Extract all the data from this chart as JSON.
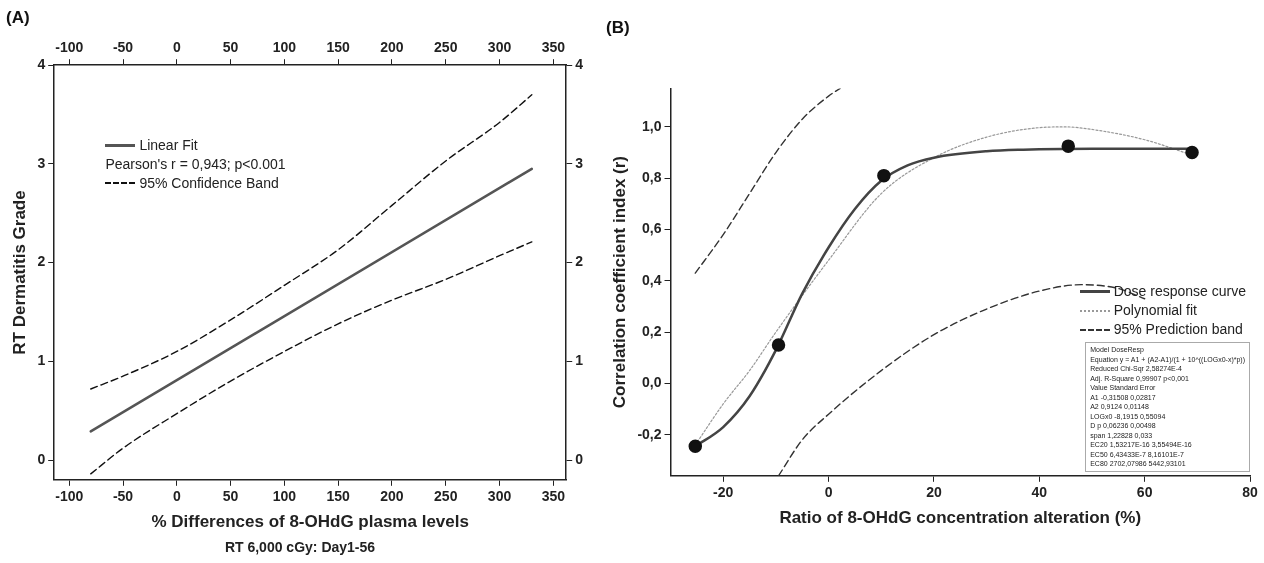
{
  "chart_data": [
    {
      "type": "line",
      "title": "(A)",
      "subtitle": "RT 6,000 cGy: Day1-56",
      "xlabel": "% Differences of 8-OHdG plasma levels",
      "ylabel": "RT Dermatitis Grade",
      "xlim": [
        -114,
        362
      ],
      "xticks": [
        -100,
        -50,
        0,
        50,
        100,
        150,
        200,
        250,
        300,
        350
      ],
      "ylim": [
        -0.2,
        4
      ],
      "yticks": [
        0,
        1,
        2,
        3,
        4
      ],
      "x2lim": [
        -114,
        362
      ],
      "x2ticks": [
        -100,
        -50,
        0,
        50,
        100,
        150,
        200,
        250,
        300,
        350
      ],
      "y2lim": [
        -0.2,
        4
      ],
      "y2ticks": [
        0,
        1,
        2,
        3,
        4
      ],
      "legend": "top left",
      "annotations": [
        "Pearson's r = 0,943; p<0.001"
      ],
      "series": [
        {
          "name": "Linear Fit",
          "color": "#555555",
          "line_style": "solid",
          "marker": "none",
          "x": [
            -80,
            330
          ],
          "values": [
            0.29,
            2.95
          ]
        },
        {
          "name": "95% Confidence Band",
          "color": "#111111",
          "line_style": "dashed",
          "marker": "none",
          "x": [
            -80,
            -50,
            0,
            50,
            100,
            150,
            200,
            250,
            300,
            330
          ],
          "values": [
            0.72,
            0.85,
            1.1,
            1.42,
            1.77,
            2.13,
            2.58,
            3.03,
            3.42,
            3.7
          ]
        },
        {
          "color": "#111111",
          "line_style": "dashed",
          "marker": "none",
          "x": [
            -80,
            -50,
            0,
            50,
            100,
            150,
            200,
            250,
            300,
            330
          ],
          "values": [
            -0.14,
            0.12,
            0.47,
            0.8,
            1.1,
            1.38,
            1.62,
            1.83,
            2.07,
            2.21
          ]
        }
      ]
    },
    {
      "type": "line",
      "title": "(B)",
      "xlabel": "Ratio of 8-OHdG concentration alteration (%)",
      "ylabel": "Correlation coefficient index (r)",
      "xlim": [
        -30,
        80
      ],
      "xticks": [
        -20,
        0,
        20,
        40,
        60,
        80
      ],
      "ylim": [
        -0.36,
        1.15
      ],
      "yticks": [
        {
          "value": -0.2,
          "label": "-0,2"
        },
        {
          "value": 0,
          "label": "0,0"
        },
        {
          "value": 0.2,
          "label": "0,2"
        },
        {
          "value": 0.4,
          "label": "0,4"
        },
        {
          "value": 0.6,
          "label": "0,6"
        },
        {
          "value": 0.8,
          "label": "0,8"
        },
        {
          "value": 1,
          "label": "1,0"
        }
      ],
      "legend": "right",
      "annotations": [
        "Model DoseResp",
        "Equation y = A1 + (A2-A1)/(1 + 10^((LOGx0-x)*p))",
        "Reduced Chi-Sqr 2,58274E-4",
        "Adj. R-Square 0,99907 p<0,001",
        "Value Standard Error",
        "A1 -0,31508 0,02817",
        "A2 0,9124 0,01148",
        "LOGx0 -8,1915 0,55094",
        "D p 0,06236 0,00498",
        "span 1,22828 0,033",
        "EC20 1,53217E-16 3,55494E-16",
        "EC50 6,43433E-7 8,16101E-7",
        "EC80 2702,07986 5442,93101"
      ],
      "series": [
        {
          "name": "Dose response curve",
          "color": "#444444",
          "line_style": "solid",
          "marker": "none",
          "x": [
            -25.3,
            -20,
            -15,
            -10,
            -5,
            0,
            5,
            10,
            15,
            20,
            30,
            40,
            50,
            69
          ],
          "values": [
            -0.245,
            -0.17,
            -0.05,
            0.13,
            0.35,
            0.53,
            0.68,
            0.79,
            0.85,
            0.88,
            0.905,
            0.913,
            0.915,
            0.915
          ]
        },
        {
          "name": "Polynomial fit",
          "color": "#999999",
          "line_style": "dotted",
          "marker": "none",
          "x": [
            -25.3,
            -20,
            -15,
            -10,
            0,
            10,
            20,
            30,
            40,
            45,
            50,
            60,
            69
          ],
          "values": [
            -0.24,
            -0.08,
            0.05,
            0.2,
            0.48,
            0.74,
            0.88,
            0.96,
            0.997,
            1.0,
            0.99,
            0.95,
            0.89
          ]
        },
        {
          "name": "95% Prediction band",
          "color": "#333333",
          "line_style": "dashed",
          "marker": "none",
          "x": [
            -25.3,
            -20,
            -15,
            -10,
            -5,
            0,
            2.2
          ],
          "values": [
            0.43,
            0.58,
            0.74,
            0.9,
            1.03,
            1.12,
            1.15
          ]
        },
        {
          "color": "#333333",
          "line_style": "dashed",
          "marker": "none",
          "x": [
            -9.5,
            -5,
            0,
            10,
            20,
            30,
            40,
            48,
            55,
            60
          ],
          "values": [
            -0.36,
            -0.22,
            -0.12,
            0.05,
            0.19,
            0.29,
            0.36,
            0.385,
            0.37,
            0.33
          ]
        },
        {
          "type": "scatter",
          "color": "#111111",
          "marker": "circle",
          "x": [
            -25.3,
            -9.5,
            10.5,
            45.5,
            69
          ],
          "values": [
            -0.245,
            0.15,
            0.81,
            0.925,
            0.9
          ]
        }
      ]
    }
  ]
}
